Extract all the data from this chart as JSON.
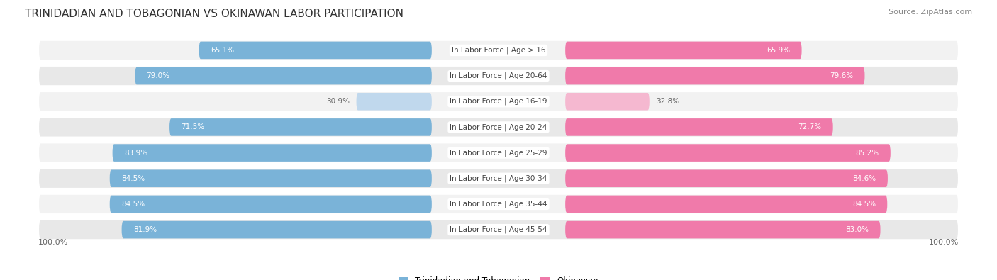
{
  "title": "TRINIDADIAN AND TOBAGONIAN VS OKINAWAN LABOR PARTICIPATION",
  "source": "Source: ZipAtlas.com",
  "categories": [
    "In Labor Force | Age > 16",
    "In Labor Force | Age 20-64",
    "In Labor Force | Age 16-19",
    "In Labor Force | Age 20-24",
    "In Labor Force | Age 25-29",
    "In Labor Force | Age 30-34",
    "In Labor Force | Age 35-44",
    "In Labor Force | Age 45-54"
  ],
  "trinidadian_values": [
    65.1,
    79.0,
    30.9,
    71.5,
    83.9,
    84.5,
    84.5,
    81.9
  ],
  "okinawan_values": [
    65.9,
    79.6,
    32.8,
    72.7,
    85.2,
    84.6,
    84.5,
    83.0
  ],
  "blue_color": "#7ab3d8",
  "pink_color": "#f07aaa",
  "light_blue_color": "#c0d8ed",
  "light_pink_color": "#f5b8d0",
  "bg_color": "#ffffff",
  "row_color_even": "#f2f2f2",
  "row_color_odd": "#e8e8e8",
  "bar_height": 0.68,
  "max_val": 100.0,
  "legend_label_blue": "Trinidadian and Tobagonian",
  "legend_label_pink": "Okinawan",
  "title_fontsize": 11,
  "label_fontsize": 7.5,
  "value_fontsize": 7.5
}
